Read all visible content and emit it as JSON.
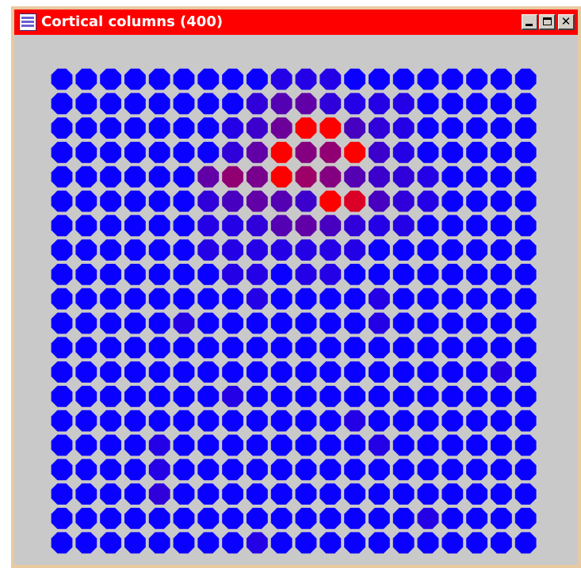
{
  "window": {
    "title": "Cortical columns (400)",
    "icon": "java-app-icon",
    "controls": {
      "minimize": "minimize-icon",
      "maximize": "maximize-icon",
      "close": "close-icon"
    }
  },
  "colors": {
    "titlebar": "#ff0000",
    "background": "#c9c9c9",
    "frame": "#e8c9a0",
    "low": "#0a00ff",
    "high": "#ff0000"
  },
  "grid": {
    "rows": 20,
    "cols": 20,
    "activations": [
      [
        0,
        0,
        0,
        0,
        0,
        0,
        0,
        0,
        0,
        0.1,
        0.1,
        0.1,
        0,
        0,
        0,
        0,
        0,
        0,
        0,
        0
      ],
      [
        0,
        0,
        0,
        0,
        0,
        0,
        0,
        0,
        0.15,
        0.3,
        0.35,
        0.15,
        0.1,
        0.1,
        0.1,
        0,
        0,
        0,
        0,
        0
      ],
      [
        0,
        0,
        0,
        0,
        0,
        0,
        0,
        0.1,
        0.2,
        0.4,
        1,
        1,
        0.25,
        0.15,
        0.1,
        0,
        0,
        0,
        0,
        0
      ],
      [
        0,
        0,
        0,
        0,
        0,
        0,
        0,
        0.15,
        0.35,
        1,
        0.5,
        0.55,
        1,
        0.2,
        0.1,
        0,
        0,
        0,
        0,
        0
      ],
      [
        0,
        0,
        0,
        0,
        0,
        0,
        0.35,
        0.55,
        0.45,
        1,
        0.6,
        0.5,
        0.3,
        0.2,
        0.15,
        0.1,
        0,
        0,
        0,
        0
      ],
      [
        0,
        0,
        0,
        0,
        0,
        0,
        0.15,
        0.25,
        0.35,
        0.3,
        0.2,
        1,
        0.85,
        0.25,
        0.15,
        0.1,
        0,
        0,
        0,
        0
      ],
      [
        0,
        0,
        0,
        0,
        0,
        0,
        0.1,
        0.1,
        0.15,
        0.3,
        0.35,
        0.25,
        0.15,
        0.1,
        0.1,
        0,
        0,
        0,
        0,
        0
      ],
      [
        0,
        0,
        0,
        0,
        0,
        0,
        0.1,
        0.1,
        0.1,
        0.1,
        0.1,
        0.1,
        0.1,
        0,
        0,
        0,
        0,
        0,
        0,
        0
      ],
      [
        0,
        0,
        0,
        0,
        0,
        0,
        0,
        0.1,
        0.1,
        0,
        0.1,
        0.1,
        0,
        0,
        0,
        0,
        0,
        0,
        0,
        0
      ],
      [
        0,
        0,
        0,
        0,
        0,
        0,
        0,
        0,
        0.1,
        0,
        0,
        0,
        0,
        0.1,
        0,
        0,
        0,
        0,
        0,
        0
      ],
      [
        0,
        0,
        0,
        0,
        0,
        0.1,
        0,
        0,
        0,
        0,
        0,
        0,
        0,
        0.1,
        0,
        0,
        0,
        0,
        0,
        0
      ],
      [
        0,
        0,
        0,
        0,
        0,
        0,
        0,
        0,
        0,
        0,
        0,
        0,
        0,
        0,
        0,
        0,
        0,
        0,
        0,
        0
      ],
      [
        0,
        0,
        0,
        0,
        0,
        0,
        0,
        0,
        0,
        0,
        0,
        0,
        0,
        0,
        0,
        0,
        0,
        0,
        0.1,
        0
      ],
      [
        0,
        0,
        0,
        0,
        0,
        0,
        0,
        0.1,
        0,
        0,
        0,
        0,
        0,
        0,
        0,
        0,
        0,
        0,
        0,
        0
      ],
      [
        0,
        0,
        0,
        0,
        0,
        0,
        0,
        0,
        0,
        0,
        0,
        0,
        0.1,
        0,
        0,
        0,
        0,
        0,
        0,
        0
      ],
      [
        0,
        0,
        0,
        0,
        0.1,
        0,
        0,
        0,
        0,
        0,
        0,
        0,
        0,
        0.1,
        0,
        0,
        0,
        0,
        0,
        0
      ],
      [
        0,
        0,
        0,
        0,
        0.1,
        0,
        0,
        0,
        0,
        0,
        0,
        0,
        0,
        0,
        0,
        0,
        0,
        0,
        0,
        0
      ],
      [
        0,
        0,
        0,
        0,
        0.15,
        0,
        0,
        0,
        0,
        0,
        0,
        0,
        0,
        0,
        0,
        0,
        0,
        0,
        0,
        0
      ],
      [
        0,
        0,
        0,
        0,
        0,
        0,
        0,
        0,
        0,
        0,
        0,
        0,
        0,
        0,
        0,
        0.1,
        0,
        0,
        0,
        0
      ],
      [
        0,
        0,
        0,
        0,
        0,
        0,
        0,
        0,
        0.1,
        0,
        0,
        0,
        0,
        0,
        0,
        0,
        0,
        0,
        0,
        0
      ]
    ]
  }
}
